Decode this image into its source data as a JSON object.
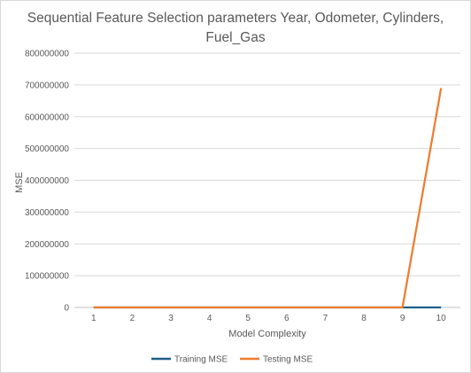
{
  "chart_data": {
    "type": "line",
    "title_lines": [
      "Sequential Feature Selection parameters Year, Odometer, Cylinders,",
      "Fuel_Gas"
    ],
    "xlabel": "Model Complexity",
    "ylabel": "MSE",
    "x": [
      1,
      2,
      3,
      4,
      5,
      6,
      7,
      8,
      9,
      10
    ],
    "ylim": [
      0,
      800000000
    ],
    "yticks": [
      0,
      100000000,
      200000000,
      300000000,
      400000000,
      500000000,
      600000000,
      700000000,
      800000000
    ],
    "grid": true,
    "legend_position": "bottom",
    "series": [
      {
        "name": "Training MSE",
        "color": "#1f5f8b",
        "values": [
          0,
          0,
          0,
          0,
          0,
          0,
          0,
          0,
          0,
          0
        ]
      },
      {
        "name": "Testing MSE",
        "color": "#ed7d31",
        "values": [
          0,
          0,
          0,
          0,
          0,
          0,
          0,
          0,
          0,
          690000000
        ]
      }
    ]
  }
}
